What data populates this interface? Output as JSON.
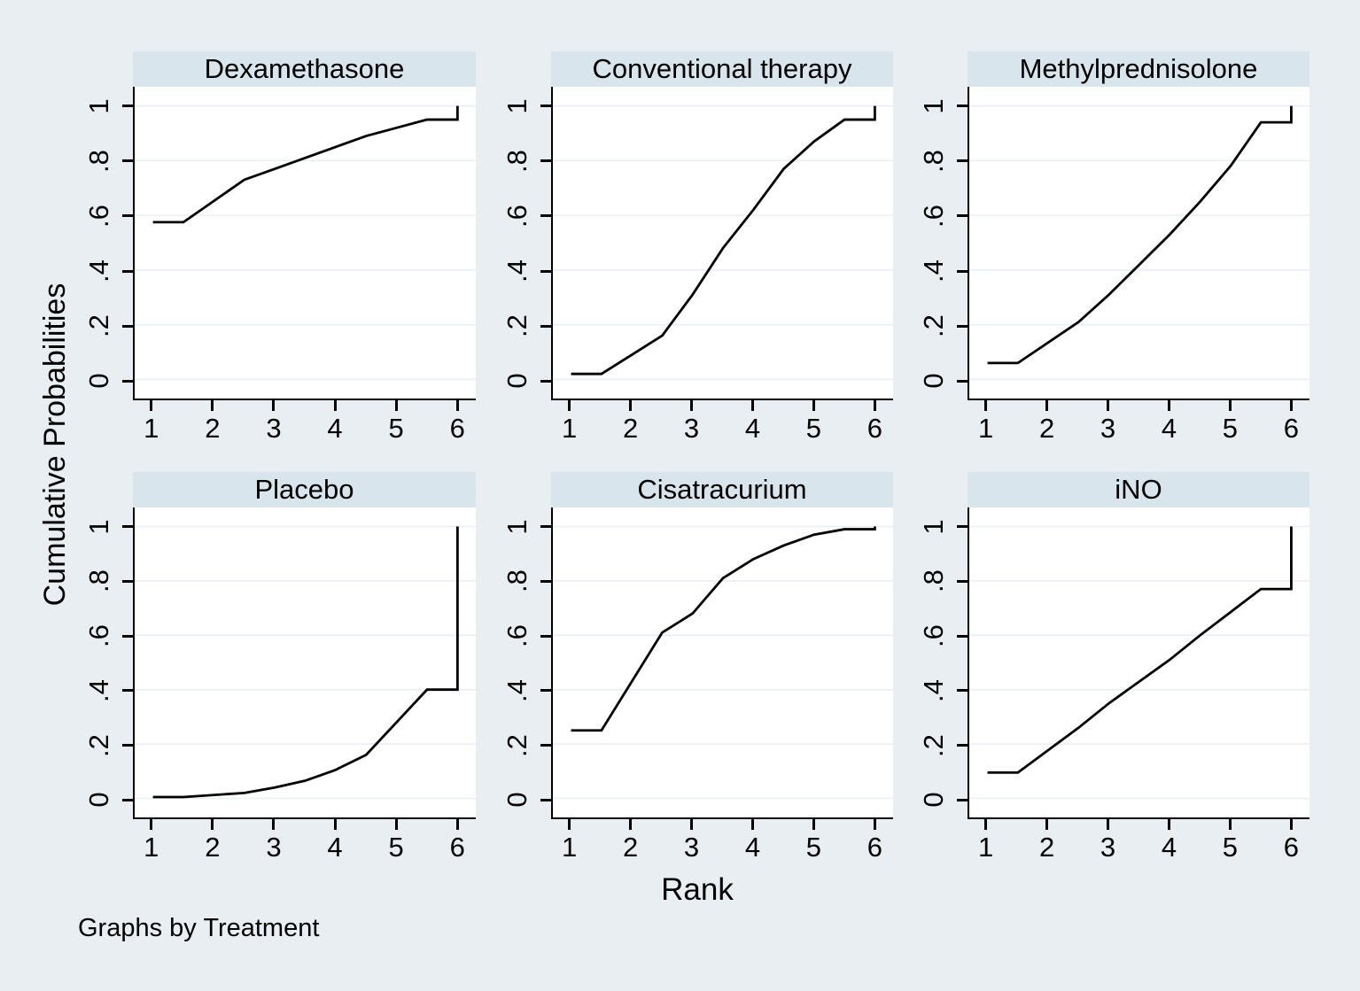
{
  "chart_data": {
    "type": "line",
    "layout": "2x3 small multiples, by-graph",
    "title": "",
    "xlabel": "Rank",
    "ylabel": "Cumulative Probabilities",
    "caption": "Graphs by Treatment",
    "xlim": [
      0.7,
      6.3
    ],
    "ylim": [
      -0.07,
      1.07
    ],
    "grid": "horizontal",
    "x_ticks": [
      1,
      2,
      3,
      4,
      5,
      6
    ],
    "x_tick_labels": [
      "1",
      "2",
      "3",
      "4",
      "5",
      "6"
    ],
    "y_ticks": [
      0,
      0.2,
      0.4,
      0.6,
      0.8,
      1
    ],
    "y_tick_labels": [
      "0",
      ".2",
      ".4",
      ".6",
      ".8",
      "1"
    ],
    "panels": [
      {
        "title": "Dexamethasone",
        "points": [
          [
            1,
            0.575
          ],
          [
            1.5,
            0.575
          ],
          [
            2.5,
            0.73
          ],
          [
            3,
            0.77
          ],
          [
            3.5,
            0.81
          ],
          [
            4,
            0.85
          ],
          [
            4.5,
            0.89
          ],
          [
            5,
            0.92
          ],
          [
            5.5,
            0.95
          ],
          [
            6,
            0.95
          ],
          [
            6,
            1
          ]
        ]
      },
      {
        "title": "Conventional therapy",
        "points": [
          [
            1,
            0.02
          ],
          [
            1.5,
            0.02
          ],
          [
            2.5,
            0.16
          ],
          [
            3,
            0.31
          ],
          [
            3.5,
            0.48
          ],
          [
            4,
            0.62
          ],
          [
            4.5,
            0.77
          ],
          [
            5,
            0.87
          ],
          [
            5.5,
            0.95
          ],
          [
            6,
            0.95
          ],
          [
            6,
            1
          ]
        ]
      },
      {
        "title": "Methylprednisolone",
        "points": [
          [
            1,
            0.06
          ],
          [
            1.5,
            0.06
          ],
          [
            2.5,
            0.21
          ],
          [
            3,
            0.31
          ],
          [
            3.5,
            0.42
          ],
          [
            4,
            0.53
          ],
          [
            4.5,
            0.65
          ],
          [
            5,
            0.78
          ],
          [
            5.5,
            0.94
          ],
          [
            6,
            0.94
          ],
          [
            6,
            1
          ]
        ]
      },
      {
        "title": "Placebo",
        "points": [
          [
            1,
            0.005
          ],
          [
            1.5,
            0.005
          ],
          [
            2.5,
            0.02
          ],
          [
            3,
            0.04
          ],
          [
            3.5,
            0.065
          ],
          [
            4,
            0.105
          ],
          [
            4.5,
            0.16
          ],
          [
            5,
            0.28
          ],
          [
            5.5,
            0.4
          ],
          [
            6,
            0.4
          ],
          [
            6,
            1
          ]
        ]
      },
      {
        "title": "Cisatracurium",
        "points": [
          [
            1,
            0.25
          ],
          [
            1.5,
            0.25
          ],
          [
            2.5,
            0.61
          ],
          [
            3,
            0.68
          ],
          [
            3.5,
            0.81
          ],
          [
            4,
            0.88
          ],
          [
            4.5,
            0.93
          ],
          [
            5,
            0.97
          ],
          [
            5.5,
            0.99
          ],
          [
            6,
            0.99
          ],
          [
            6,
            1
          ]
        ]
      },
      {
        "title": "iNO",
        "points": [
          [
            1,
            0.095
          ],
          [
            1.5,
            0.095
          ],
          [
            2.5,
            0.26
          ],
          [
            3,
            0.35
          ],
          [
            3.5,
            0.43
          ],
          [
            4,
            0.51
          ],
          [
            4.5,
            0.6
          ],
          [
            5,
            0.685
          ],
          [
            5.5,
            0.77
          ],
          [
            6,
            0.77
          ],
          [
            6,
            1
          ]
        ]
      }
    ],
    "colors": {
      "background": "#e8eef1",
      "strip": "#d8e5ed",
      "plot_background": "#ffffff",
      "grid": "#e7eff6",
      "line": "#000000",
      "axis": "#000000",
      "text": "#000000"
    }
  }
}
